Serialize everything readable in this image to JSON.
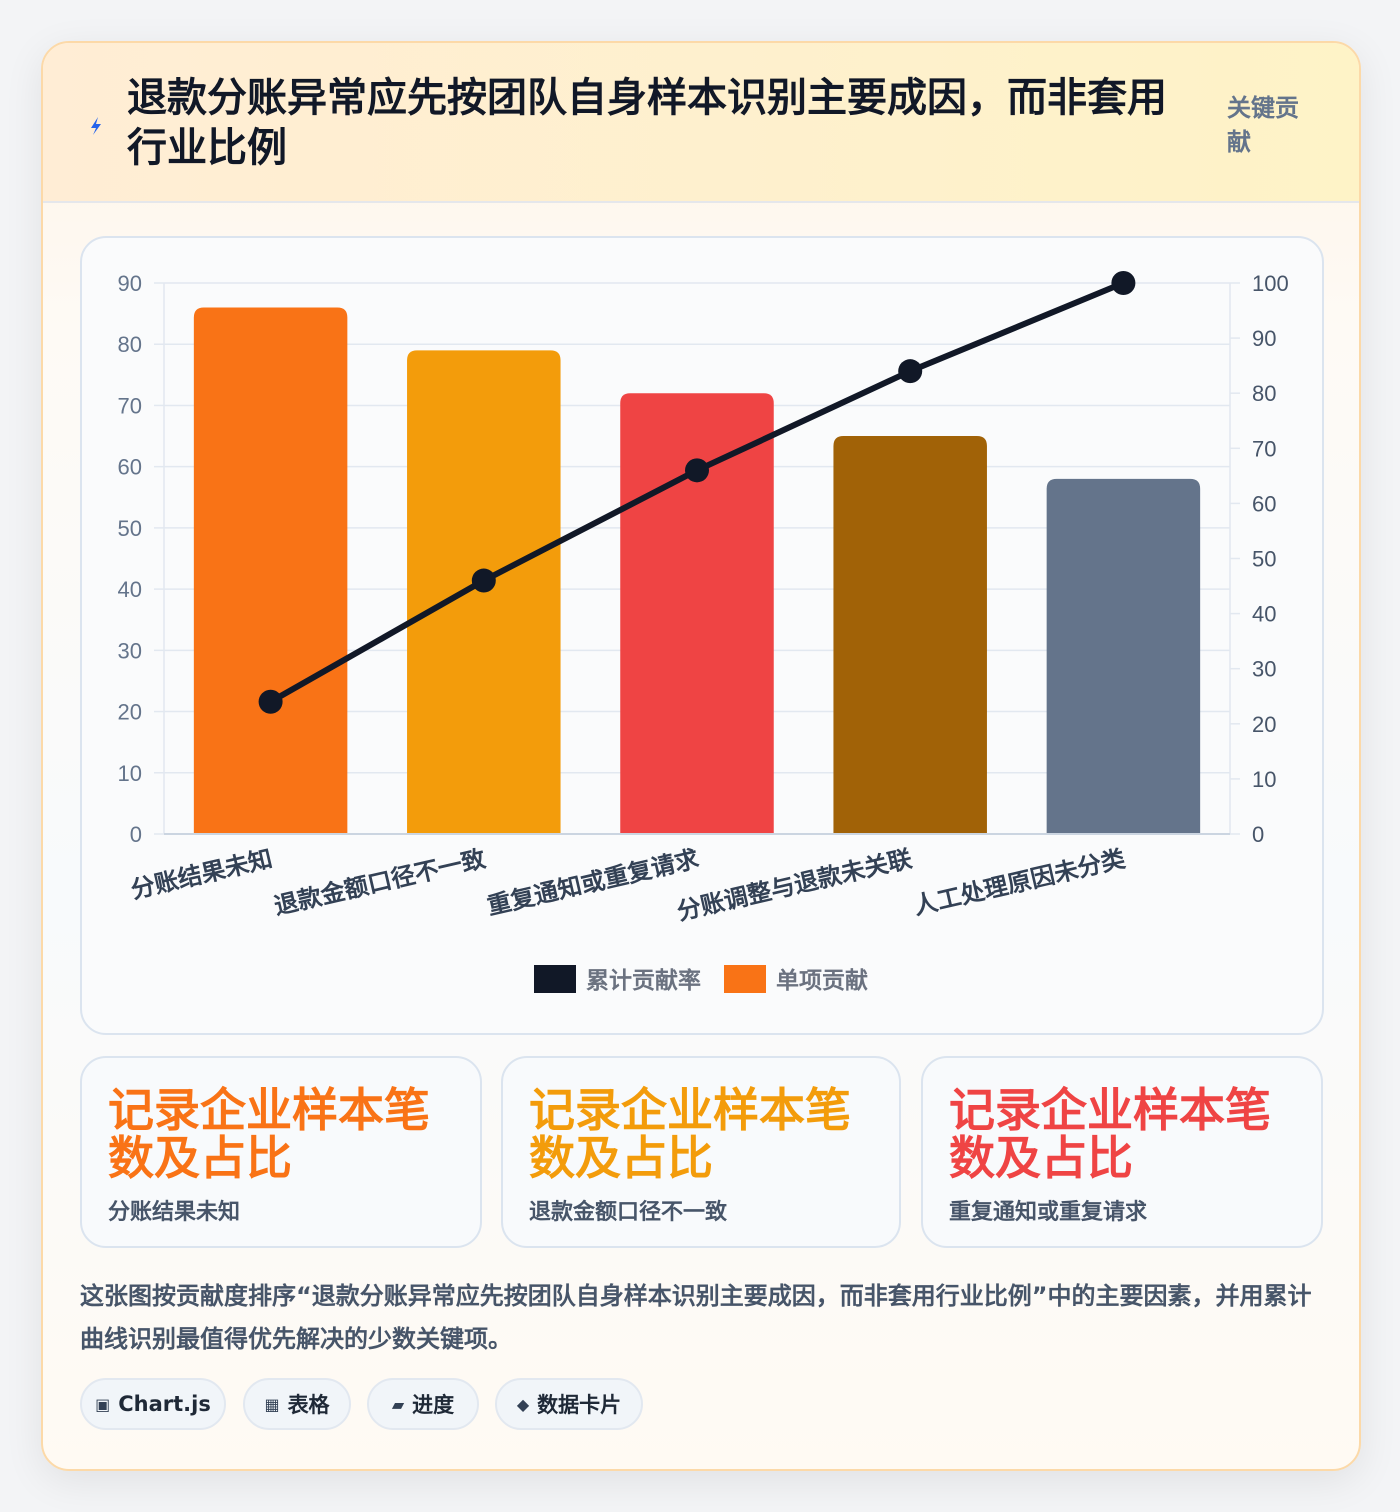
{
  "header": {
    "icon": "lightning-icon",
    "title": "退款分账异常应先按团队自身样本识别主要成因，而非套用行业比例",
    "badge": "关键贡献"
  },
  "chart_data": {
    "type": "bar",
    "categories": [
      "分账结果未知",
      "退款金额口径不一致",
      "重复通知或重复请求",
      "分账调整与退款未关联",
      "人工处理原因未分类"
    ],
    "series": [
      {
        "name": "单项贡献",
        "type": "bar",
        "axis": "left",
        "values": [
          86,
          79,
          72,
          65,
          58
        ],
        "colors": [
          "#f97316",
          "#f39c0b",
          "#ef4444",
          "#a16207",
          "#64748b"
        ]
      },
      {
        "name": "累计贡献率",
        "type": "line",
        "axis": "right",
        "values": [
          24,
          46,
          66,
          84,
          100
        ],
        "color": "#111827"
      }
    ],
    "y_left": {
      "min": 0,
      "max": 90,
      "ticks": [
        0,
        10,
        20,
        30,
        40,
        50,
        60,
        70,
        80,
        90
      ]
    },
    "y_right": {
      "min": 0,
      "max": 100,
      "ticks": [
        0,
        10,
        20,
        30,
        40,
        50,
        60,
        70,
        80,
        90,
        100
      ]
    },
    "legend": {
      "position": "bottom",
      "items": [
        {
          "label": "累计贡献率",
          "color": "#111827"
        },
        {
          "label": "单项贡献",
          "color": "#f97316"
        }
      ]
    },
    "grid": true
  },
  "stats": [
    {
      "value": "记录企业样本笔数及占比",
      "label": "分账结果未知",
      "color": "#f97316"
    },
    {
      "value": "记录企业样本笔数及占比",
      "label": "退款金额口径不一致",
      "color": "#f39c0b"
    },
    {
      "value": "记录企业样本笔数及占比",
      "label": "重复通知或重复请求",
      "color": "#ef4444"
    }
  ],
  "description": "这张图按贡献度排序“退款分账异常应先按团队自身样本识别主要成因，而非套用行业比例”中的主要因素，并用累计曲线识别最值得优先解决的少数关键项。",
  "chips": [
    {
      "icon": "▣",
      "label": "Chart.js"
    },
    {
      "icon": "▦",
      "label": "表格"
    },
    {
      "icon": "▰",
      "label": "进度"
    },
    {
      "icon": "◆",
      "label": "数据卡片"
    }
  ]
}
